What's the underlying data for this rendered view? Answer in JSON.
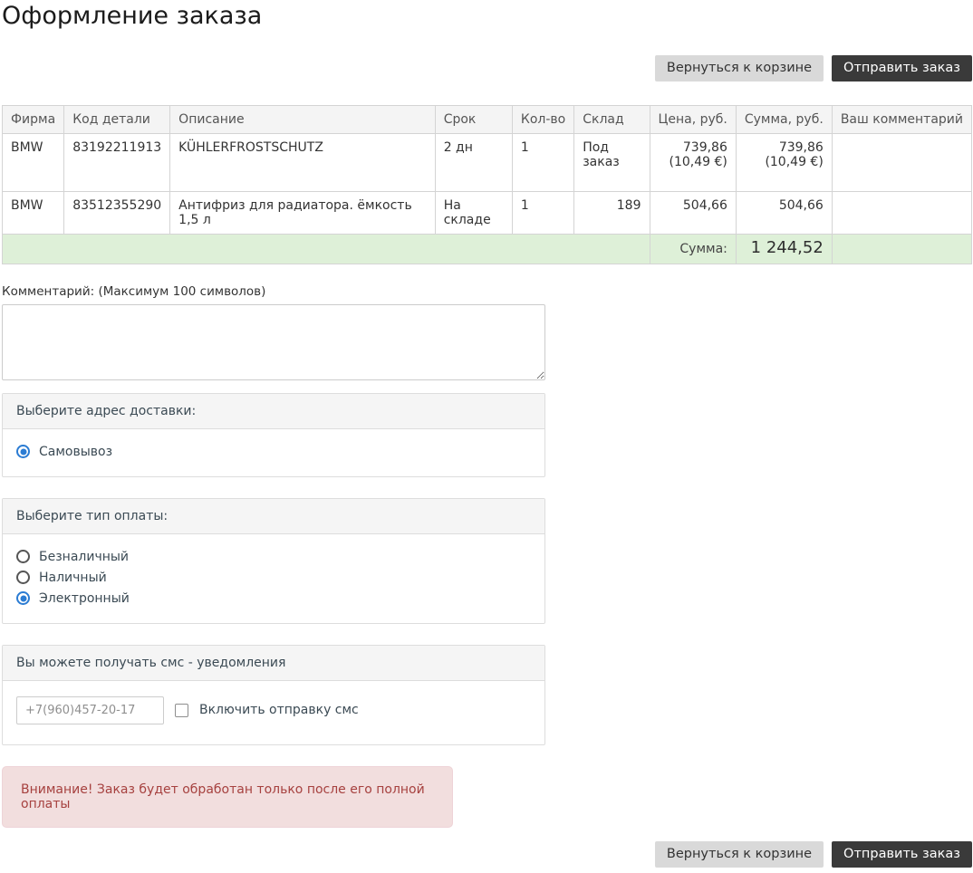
{
  "page": {
    "title": "Оформление заказа"
  },
  "buttons": {
    "back_to_cart": "Вернуться к корзине",
    "submit_order": "Отправить заказ"
  },
  "table": {
    "headers": [
      "Фирма",
      "Код детали",
      "Описание",
      "Срок",
      "Кол-во",
      "Склад",
      "Цена, руб.",
      "Сумма, руб.",
      "Ваш комментарий"
    ],
    "rows": [
      {
        "tall": true,
        "cells": [
          {
            "t": "BMW"
          },
          {
            "t": "83192211913"
          },
          {
            "t": "KÜHLERFROSTSCHUTZ"
          },
          {
            "t": "2 дн"
          },
          {
            "t": "1"
          },
          {
            "t": "Под заказ"
          },
          {
            "t": "739,86\n(10,49 €)",
            "align": "right",
            "twoLine": true
          },
          {
            "t": "739,86\n(10,49 €)",
            "align": "right",
            "twoLine": true
          },
          {
            "t": ""
          }
        ]
      },
      {
        "tall": false,
        "cells": [
          {
            "t": "BMW"
          },
          {
            "t": "83512355290"
          },
          {
            "t": "Антифриз для радиатора. ёмкость 1,5 л"
          },
          {
            "t": "На складе"
          },
          {
            "t": "1"
          },
          {
            "t": "189",
            "align": "right"
          },
          {
            "t": "504,66",
            "align": "right"
          },
          {
            "t": "504,66",
            "align": "right"
          },
          {
            "t": ""
          }
        ]
      }
    ],
    "summary": {
      "label": "Сумма:",
      "value": "1 244,52"
    }
  },
  "comment": {
    "label": "Комментарий: (Максимум 100 символов)",
    "value": ""
  },
  "delivery": {
    "title": "Выберите адрес доставки:",
    "options": [
      {
        "label": "Самовывоз",
        "checked": true
      }
    ]
  },
  "payment": {
    "title": "Выберите тип оплаты:",
    "options": [
      {
        "label": "Безналичный",
        "checked": false
      },
      {
        "label": "Наличный",
        "checked": false
      },
      {
        "label": "Электронный",
        "checked": true
      }
    ]
  },
  "sms": {
    "title": "Вы можете получать смс - уведомления",
    "phone_placeholder": "+7(960)457-20-17",
    "checkbox_label": "Включить отправку смс",
    "checkbox_checked": false
  },
  "warning": {
    "text": "Внимание! Заказ будет обработан только после его полной оплаты"
  },
  "colors": {
    "accent_blue": "#2b7cd3",
    "summary_green": "#def0d8",
    "warning_bg": "#f2dede",
    "warning_text": "#a6413f",
    "dark_button": "#3a3a3a",
    "light_button": "#d9d9d9"
  }
}
